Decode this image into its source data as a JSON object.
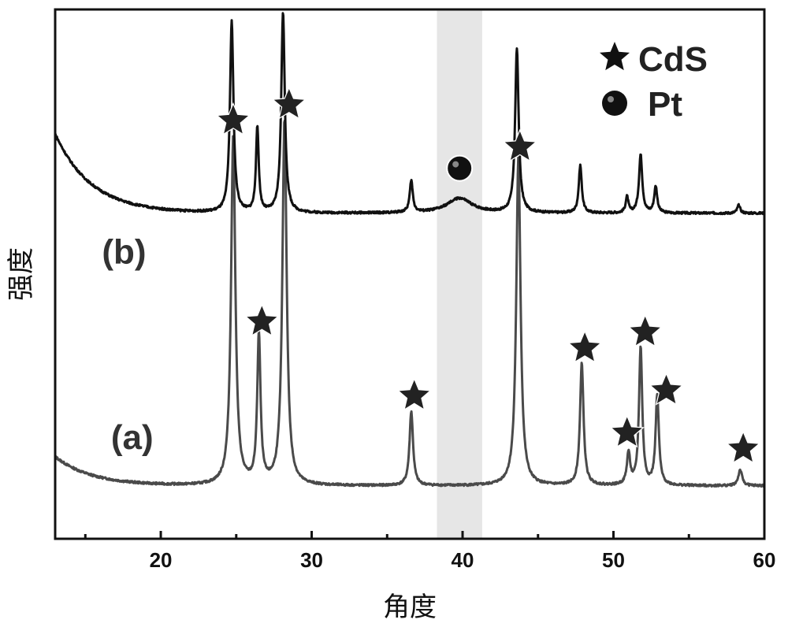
{
  "chart_data": {
    "type": "line",
    "title": "",
    "xlabel": "角度",
    "ylabel": "强度",
    "xlim": [
      13,
      60
    ],
    "ylim": [
      0,
      1
    ],
    "x_ticks": [
      20,
      30,
      40,
      50,
      60
    ],
    "x_tick_labels": [
      "20",
      "30",
      "40",
      "50",
      "60"
    ],
    "grid": false,
    "legend": {
      "placement": "top-right",
      "entries": [
        {
          "marker": "star",
          "label": "CdS"
        },
        {
          "marker": "circle",
          "label": "Pt"
        }
      ]
    },
    "highlight_band": {
      "x_start": 38.3,
      "x_end": 41.3,
      "color": "#e6e6e6"
    },
    "series": [
      {
        "name": "(a)",
        "color": "#4a4a4a",
        "baseline": 0.1,
        "start_bump": 0.055,
        "peaks": [
          {
            "x": 24.8,
            "h": 0.66,
            "w": 0.17
          },
          {
            "x": 26.5,
            "h": 0.28,
            "w": 0.13
          },
          {
            "x": 28.2,
            "h": 0.69,
            "w": 0.17
          },
          {
            "x": 36.6,
            "h": 0.14,
            "w": 0.14
          },
          {
            "x": 43.7,
            "h": 0.62,
            "w": 0.17
          },
          {
            "x": 47.9,
            "h": 0.23,
            "w": 0.14
          },
          {
            "x": 51.0,
            "h": 0.06,
            "w": 0.13
          },
          {
            "x": 51.8,
            "h": 0.26,
            "w": 0.13
          },
          {
            "x": 52.9,
            "h": 0.17,
            "w": 0.13
          },
          {
            "x": 58.4,
            "h": 0.03,
            "w": 0.15
          }
        ]
      },
      {
        "name": "(b)",
        "color": "#111111",
        "baseline": 0.615,
        "start_bump": 0.15,
        "peaks": [
          {
            "x": 24.7,
            "h": 0.36,
            "w": 0.14
          },
          {
            "x": 26.4,
            "h": 0.16,
            "w": 0.11
          },
          {
            "x": 28.1,
            "h": 0.38,
            "w": 0.14
          },
          {
            "x": 36.6,
            "h": 0.06,
            "w": 0.12
          },
          {
            "x": 39.8,
            "h": 0.028,
            "w": 1.0
          },
          {
            "x": 43.6,
            "h": 0.31,
            "w": 0.14
          },
          {
            "x": 47.8,
            "h": 0.09,
            "w": 0.12
          },
          {
            "x": 50.9,
            "h": 0.03,
            "w": 0.11
          },
          {
            "x": 51.8,
            "h": 0.11,
            "w": 0.13
          },
          {
            "x": 52.8,
            "h": 0.05,
            "w": 0.12
          },
          {
            "x": 58.3,
            "h": 0.015,
            "w": 0.12
          }
        ]
      }
    ],
    "series_labels": [
      {
        "text": "(a)",
        "x": 16.7,
        "y": 0.17
      },
      {
        "text": "(b)",
        "x": 16.1,
        "y": 0.52
      }
    ],
    "markers": [
      {
        "type": "star",
        "x": 24.8,
        "y": 0.79
      },
      {
        "type": "star",
        "x": 26.7,
        "y": 0.41
      },
      {
        "type": "star",
        "x": 28.5,
        "y": 0.82
      },
      {
        "type": "star",
        "x": 36.8,
        "y": 0.27
      },
      {
        "type": "star",
        "x": 43.8,
        "y": 0.74
      },
      {
        "type": "star",
        "x": 48.1,
        "y": 0.36
      },
      {
        "type": "star",
        "x": 50.9,
        "y": 0.2
      },
      {
        "type": "star",
        "x": 52.1,
        "y": 0.39
      },
      {
        "type": "star",
        "x": 53.5,
        "y": 0.28
      },
      {
        "type": "star",
        "x": 58.6,
        "y": 0.17
      },
      {
        "type": "circle",
        "x": 39.8,
        "y": 0.7
      }
    ]
  }
}
